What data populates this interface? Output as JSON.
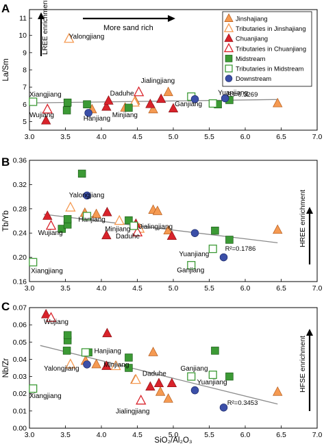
{
  "legend_items": [
    {
      "label": "Jinshajiang",
      "shape": "triangle",
      "fill": "#f59a52",
      "stroke": "#b55a1a"
    },
    {
      "label": "Tributaries in Jinshajiang",
      "shape": "triangle",
      "fill": "none",
      "stroke": "#f59a52"
    },
    {
      "label": "Chuanjiang",
      "shape": "triangle",
      "fill": "#d9232b",
      "stroke": "#8c1015"
    },
    {
      "label": "Tributaries in Chuanjiang",
      "shape": "triangle",
      "fill": "none",
      "stroke": "#d9232b"
    },
    {
      "label": "Midstream",
      "shape": "square",
      "fill": "#3c9a35",
      "stroke": "#1a5a16"
    },
    {
      "label": "Tributaries in Midstream",
      "shape": "square",
      "fill": "none",
      "stroke": "#3c9a35"
    },
    {
      "label": "Downstream",
      "shape": "circle",
      "fill": "#3b4fa8",
      "stroke": "#1e2b6b"
    }
  ],
  "chart_data": [
    {
      "panel": "A",
      "type": "scatter",
      "xlabel": "",
      "ylabel": "La/Sm",
      "xlim": [
        3.0,
        7.0
      ],
      "ylim": [
        4.5,
        11.5
      ],
      "xticks": [
        3.0,
        3.5,
        4.0,
        4.5,
        5.0,
        5.5,
        6.0,
        6.5,
        7.0
      ],
      "yticks": [
        5,
        6,
        7,
        8,
        9,
        10,
        11
      ],
      "arrow_labels": {
        "enrichment": "LREE enrichment",
        "top": "More sand rich"
      },
      "r2": "R²=0.3269",
      "trendline": [
        [
          3.0,
          6.08
        ],
        [
          6.45,
          6.28
        ]
      ],
      "annotations": [
        {
          "text": "Yalongjiang",
          "x": 3.55,
          "y": 9.8
        },
        {
          "text": "Xiangjiang",
          "x": 3.0,
          "y": 6.45
        },
        {
          "text": "Wujiang",
          "x": 3.0,
          "y": 5.25
        },
        {
          "text": "Hanjiang",
          "x": 3.75,
          "y": 5.05
        },
        {
          "text": "Minjiang",
          "x": 4.15,
          "y": 5.25
        },
        {
          "text": "Daduhe",
          "x": 4.12,
          "y": 6.5
        },
        {
          "text": "Jialingjiang",
          "x": 4.55,
          "y": 7.25
        },
        {
          "text": "Ganjiang",
          "x": 5.02,
          "y": 5.9
        },
        {
          "text": "Yuanjiang",
          "x": 5.62,
          "y": 6.55
        }
      ],
      "series": [
        {
          "name": "Jinshajiang",
          "points": [
            [
              3.87,
              5.7
            ],
            [
              4.33,
              5.8
            ],
            [
              4.47,
              6.2
            ],
            [
              4.72,
              5.7
            ],
            [
              4.93,
              6.7
            ],
            [
              6.45,
              6.05
            ]
          ]
        },
        {
          "name": "Tributaries in Jinshajiang",
          "points": [
            [
              3.55,
              9.8
            ],
            [
              4.46,
              6.1
            ]
          ]
        },
        {
          "name": "Chuanjiang",
          "points": [
            [
              3.23,
              5.05
            ],
            [
              4.07,
              5.85
            ],
            [
              4.1,
              6.2
            ],
            [
              4.68,
              6.0
            ],
            [
              4.83,
              6.3
            ],
            [
              5.0,
              5.75
            ]
          ]
        },
        {
          "name": "Tributaries in Chuanjiang",
          "points": [
            [
              3.25,
              5.7
            ],
            [
              4.52,
              6.7
            ]
          ]
        },
        {
          "name": "Midstream",
          "points": [
            [
              3.52,
              5.65
            ],
            [
              3.53,
              6.1
            ],
            [
              3.8,
              6.0
            ],
            [
              4.38,
              5.8
            ],
            [
              5.62,
              6.0
            ],
            [
              5.78,
              6.25
            ]
          ]
        },
        {
          "name": "Tributaries in Midstream",
          "points": [
            [
              3.05,
              6.15
            ],
            [
              5.25,
              6.45
            ],
            [
              5.55,
              6.05
            ]
          ]
        },
        {
          "name": "Downstream",
          "points": [
            [
              3.82,
              5.5
            ],
            [
              5.3,
              6.3
            ],
            [
              5.72,
              6.35
            ]
          ]
        }
      ]
    },
    {
      "panel": "B",
      "type": "scatter",
      "xlabel": "",
      "ylabel": "Tb/Yb",
      "xlim": [
        3.0,
        7.0
      ],
      "ylim": [
        0.16,
        0.36
      ],
      "xticks": [
        3.0,
        3.5,
        4.0,
        4.5,
        5.0,
        5.5,
        6.0,
        6.5,
        7.0
      ],
      "yticks": [
        0.16,
        0.2,
        0.24,
        0.28,
        0.32,
        0.36
      ],
      "arrow_labels": {
        "enrichment": "HREE enrichment"
      },
      "r2": "R²=0.1786",
      "trendline": [
        [
          3.2,
          0.271
        ],
        [
          6.45,
          0.224
        ]
      ],
      "annotations": [
        {
          "text": "Yalongjiang",
          "x": 3.55,
          "y": 0.299
        },
        {
          "text": "Hanjiang",
          "x": 3.68,
          "y": 0.259
        },
        {
          "text": "Wujiang",
          "x": 3.12,
          "y": 0.237
        },
        {
          "text": "Minjiang",
          "x": 4.05,
          "y": 0.243
        },
        {
          "text": "Jialingjiang",
          "x": 4.52,
          "y": 0.247
        },
        {
          "text": "Daduhe",
          "x": 4.2,
          "y": 0.231
        },
        {
          "text": "Yuanjiang",
          "x": 5.08,
          "y": 0.202
        },
        {
          "text": "R²=0.1786",
          "x": 5.72,
          "y": 0.213
        },
        {
          "text": "Xiangjiang",
          "x": 3.02,
          "y": 0.174
        },
        {
          "text": "Ganjiang",
          "x": 5.05,
          "y": 0.175
        }
      ],
      "series": [
        {
          "name": "Jinshajiang",
          "points": [
            [
              3.77,
              0.273
            ],
            [
              3.93,
              0.271
            ],
            [
              4.47,
              0.252
            ],
            [
              4.72,
              0.278
            ],
            [
              4.78,
              0.276
            ],
            [
              4.93,
              0.244
            ],
            [
              6.45,
              0.245
            ]
          ]
        },
        {
          "name": "Tributaries in Jinshajiang",
          "points": [
            [
              3.57,
              0.282
            ],
            [
              4.25,
              0.26
            ],
            [
              4.53,
              0.247
            ]
          ]
        },
        {
          "name": "Chuanjiang",
          "points": [
            [
              3.25,
              0.268
            ],
            [
              4.07,
              0.236
            ],
            [
              4.08,
              0.274
            ],
            [
              4.48,
              0.255
            ],
            [
              4.98,
              0.235
            ]
          ]
        },
        {
          "name": "Tributaries in Chuanjiang",
          "points": [
            [
              3.3,
              0.252
            ],
            [
              4.5,
              0.241
            ]
          ]
        },
        {
          "name": "Midstream",
          "points": [
            [
              3.45,
              0.247
            ],
            [
              3.53,
              0.254
            ],
            [
              3.53,
              0.263
            ],
            [
              3.73,
              0.338
            ],
            [
              4.38,
              0.261
            ],
            [
              5.58,
              0.244
            ],
            [
              5.78,
              0.229
            ]
          ]
        },
        {
          "name": "Tributaries in Midstream",
          "points": [
            [
              3.05,
              0.192
            ],
            [
              3.8,
              0.268
            ],
            [
              4.45,
              0.252
            ],
            [
              5.25,
              0.187
            ],
            [
              5.55,
              0.214
            ]
          ]
        },
        {
          "name": "Downstream",
          "points": [
            [
              3.8,
              0.302
            ],
            [
              5.3,
              0.24
            ],
            [
              5.7,
              0.2
            ]
          ]
        }
      ]
    },
    {
      "panel": "C",
      "type": "scatter",
      "xlabel": "SiO₂/Al₂O₃",
      "ylabel": "Nb/Zr",
      "xlim": [
        3.0,
        7.0
      ],
      "ylim": [
        0.0,
        0.07
      ],
      "xticks": [
        3.0,
        3.5,
        4.0,
        4.5,
        5.0,
        5.5,
        6.0,
        6.5,
        7.0
      ],
      "yticks": [
        0.0,
        0.01,
        0.02,
        0.03,
        0.04,
        0.05,
        0.06,
        0.07
      ],
      "arrow_labels": {
        "enrichment": "HFSE enrichment"
      },
      "r2": "R²=0.3453",
      "trendline": [
        [
          3.15,
          0.048
        ],
        [
          6.45,
          0.014
        ]
      ],
      "annotations": [
        {
          "text": "Wujiang",
          "x": 3.2,
          "y": 0.0605
        },
        {
          "text": "Hanjiang",
          "x": 3.9,
          "y": 0.0435
        },
        {
          "text": "Yalongjiang",
          "x": 3.2,
          "y": 0.0335
        },
        {
          "text": "Minjiang",
          "x": 4.03,
          "y": 0.0355
        },
        {
          "text": "Daduhe",
          "x": 4.57,
          "y": 0.0305
        },
        {
          "text": "Ganjiang",
          "x": 5.1,
          "y": 0.0335
        },
        {
          "text": "Yuanjiang",
          "x": 5.33,
          "y": 0.0255
        },
        {
          "text": "Xiangjiang",
          "x": 3.0,
          "y": 0.0175
        },
        {
          "text": "Jialingjiang",
          "x": 4.2,
          "y": 0.0085
        }
      ],
      "series": [
        {
          "name": "Jinshajiang",
          "points": [
            [
              3.78,
              0.039
            ],
            [
              3.93,
              0.037
            ],
            [
              4.47,
              0.028
            ],
            [
              4.72,
              0.044
            ],
            [
              4.82,
              0.021
            ],
            [
              4.93,
              0.017
            ],
            [
              6.45,
              0.021
            ]
          ]
        },
        {
          "name": "Tributaries in Jinshajiang",
          "points": [
            [
              3.57,
              0.037
            ],
            [
              4.2,
              0.036
            ],
            [
              4.48,
              0.028
            ]
          ]
        },
        {
          "name": "Chuanjiang",
          "points": [
            [
              3.23,
              0.066
            ],
            [
              4.07,
              0.036
            ],
            [
              4.08,
              0.055
            ],
            [
              4.68,
              0.024
            ],
            [
              4.8,
              0.026
            ],
            [
              4.98,
              0.026
            ]
          ]
        },
        {
          "name": "Tributaries in Chuanjiang",
          "points": [
            [
              3.3,
              0.064
            ],
            [
              4.55,
              0.016
            ]
          ]
        },
        {
          "name": "Midstream",
          "points": [
            [
              3.52,
              0.045
            ],
            [
              3.53,
              0.051
            ],
            [
              3.53,
              0.054
            ],
            [
              3.82,
              0.044
            ],
            [
              4.38,
              0.035
            ],
            [
              4.38,
              0.041
            ],
            [
              5.58,
              0.045
            ],
            [
              5.78,
              0.03
            ]
          ]
        },
        {
          "name": "Tributaries in Midstream",
          "points": [
            [
              3.05,
              0.023
            ],
            [
              3.78,
              0.044
            ],
            [
              5.25,
              0.03
            ],
            [
              5.55,
              0.031
            ]
          ]
        },
        {
          "name": "Downstream",
          "points": [
            [
              3.8,
              0.037
            ],
            [
              5.3,
              0.022
            ],
            [
              5.7,
              0.012
            ]
          ]
        }
      ]
    }
  ]
}
